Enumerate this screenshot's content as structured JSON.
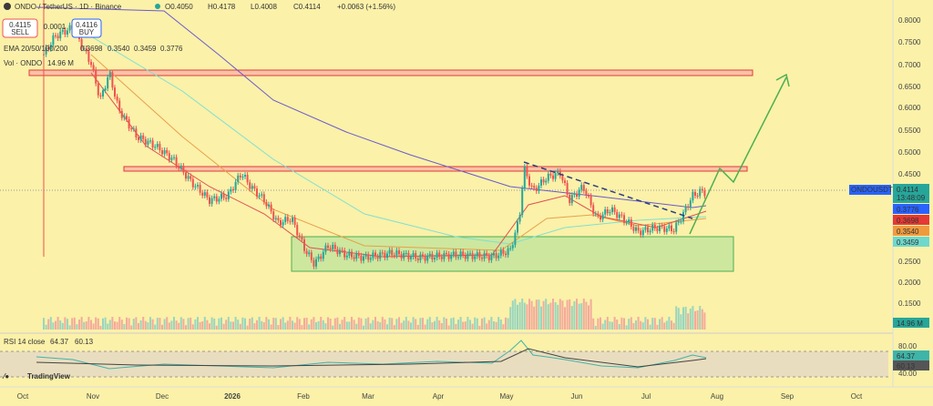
{
  "header": {
    "symbol": "ONDO / TetherUS · 1D · Binance",
    "open": "O0.4050",
    "high": "H0.4178",
    "low": "L0.4008",
    "close": "C0.4114",
    "change": "+0.0063 (+1.56%)"
  },
  "trade": {
    "sell_price": "0.4115",
    "sell": "SELL",
    "spread": "0.0001",
    "buy_price": "0.4116",
    "buy": "BUY"
  },
  "ema": {
    "label": "EMA 20/50/100/200",
    "values": [
      "0.3698",
      "0.3540",
      "0.3459",
      "0.3776"
    ]
  },
  "volume": {
    "label": "Vol · ONDO",
    "value": "14.96 M"
  },
  "price_axis": [
    "0.8000",
    "0.7500",
    "0.7000",
    "0.6500",
    "0.6000",
    "0.5500",
    "0.5000",
    "0.4500",
    "0.2500",
    "0.2000",
    "0.1500"
  ],
  "badges": {
    "symbol": "ONDOUSDT",
    "price": "0.4114",
    "countdown": "13:48:09",
    "ema200": "0.3776",
    "ema20": "0.3698",
    "ema50": "0.3540",
    "ema100": "0.3459",
    "volume": "14.96 M"
  },
  "rsi": {
    "label": "RSI 14 close",
    "value": "64.37",
    "ma": "60.13",
    "axis": [
      "80.00",
      "40.00"
    ]
  },
  "time_axis": [
    "Oct",
    "Nov",
    "Dec",
    "2026",
    "Feb",
    "Mar",
    "Apr",
    "May",
    "Jun",
    "Jul",
    "Aug",
    "Sep",
    "Oct"
  ],
  "logo": "TradingView"
}
